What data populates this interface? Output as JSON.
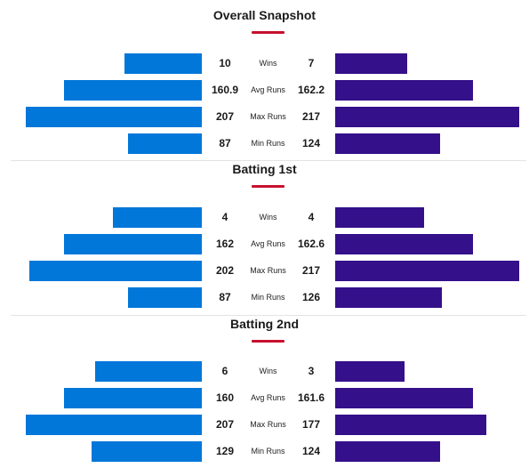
{
  "colors": {
    "team_a": "#0077d9",
    "team_b": "#34108a",
    "accent": "#c8102e"
  },
  "scale_max": 220,
  "sections": [
    {
      "title": "Overall Snapshot",
      "rows": [
        {
          "metric": "Wins",
          "a": "10",
          "b": "7",
          "a_bar": 0.4,
          "b_bar": 0.37
        },
        {
          "metric": "Avg Runs",
          "a": "160.9",
          "b": "162.2",
          "a_bar": 0.71,
          "b_bar": 0.71
        },
        {
          "metric": "Max Runs",
          "a": "207",
          "b": "217",
          "a_bar": 0.91,
          "b_bar": 0.95
        },
        {
          "metric": "Min Runs",
          "a": "87",
          "b": "124",
          "a_bar": 0.38,
          "b_bar": 0.54
        }
      ]
    },
    {
      "title": "Batting 1st",
      "rows": [
        {
          "metric": "Wins",
          "a": "4",
          "b": "4",
          "a_bar": 0.46,
          "b_bar": 0.46
        },
        {
          "metric": "Avg Runs",
          "a": "162",
          "b": "162.6",
          "a_bar": 0.71,
          "b_bar": 0.71
        },
        {
          "metric": "Max Runs",
          "a": "202",
          "b": "217",
          "a_bar": 0.89,
          "b_bar": 0.95
        },
        {
          "metric": "Min Runs",
          "a": "87",
          "b": "126",
          "a_bar": 0.38,
          "b_bar": 0.55
        }
      ]
    },
    {
      "title": "Batting 2nd",
      "rows": [
        {
          "metric": "Wins",
          "a": "6",
          "b": "3",
          "a_bar": 0.55,
          "b_bar": 0.36
        },
        {
          "metric": "Avg Runs",
          "a": "160",
          "b": "161.6",
          "a_bar": 0.71,
          "b_bar": 0.71
        },
        {
          "metric": "Max Runs",
          "a": "207",
          "b": "177",
          "a_bar": 0.91,
          "b_bar": 0.78
        },
        {
          "metric": "Min Runs",
          "a": "129",
          "b": "124",
          "a_bar": 0.57,
          "b_bar": 0.54
        }
      ]
    }
  ]
}
